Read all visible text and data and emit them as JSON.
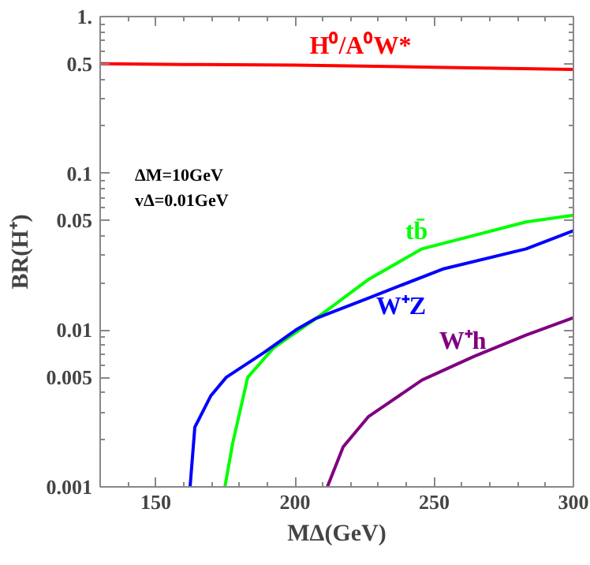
{
  "chart_data": {
    "type": "line",
    "xlabel": "MΔ(GeV)",
    "ylabel": "BR(H⁺)",
    "log": "y",
    "xlim": [
      130,
      300
    ],
    "xticks": [
      150,
      200,
      250,
      300
    ],
    "ylim": [
      0.001,
      1
    ],
    "yticks": [
      {
        "value": 0.001,
        "label": "0.001"
      },
      {
        "value": 0.005,
        "label": "0.005"
      },
      {
        "value": 0.01,
        "label": "0.01"
      },
      {
        "value": 0.05,
        "label": "0.05"
      },
      {
        "value": 0.1,
        "label": "0.1"
      },
      {
        "value": 0.5,
        "label": "0.5"
      },
      {
        "value": 1,
        "label": "1."
      }
    ],
    "grid": false,
    "line_style": "solid",
    "marker": "none",
    "series": [
      {
        "name": "H⁰/A⁰W*",
        "color": "#ff0000",
        "x": [
          130,
          160,
          200,
          250,
          300
        ],
        "values": [
          0.5,
          0.495,
          0.49,
          0.475,
          0.46
        ]
      },
      {
        "name": "tb̄",
        "color": "#00ff00",
        "x": [
          174.8,
          177.6,
          183,
          192.3,
          207.6,
          226.3,
          245.6,
          283,
          300
        ],
        "values": [
          0.001,
          0.0019,
          0.005,
          0.0077,
          0.0119,
          0.021,
          0.033,
          0.049,
          0.054
        ]
      },
      {
        "name": "W⁺Z",
        "color": "#0000ff",
        "x": [
          162.3,
          164,
          169.7,
          175.3,
          188.9,
          200.2,
          207.6,
          226.3,
          253,
          283,
          300
        ],
        "values": [
          0.001,
          0.0024,
          0.0038,
          0.005,
          0.0072,
          0.01,
          0.0119,
          0.016,
          0.0245,
          0.033,
          0.043
        ]
      },
      {
        "name": "W⁺h",
        "color": "#800080",
        "x": [
          211.6,
          217.3,
          226.3,
          245.6,
          264.3,
          283,
          300
        ],
        "values": [
          0.001,
          0.0018,
          0.0028,
          0.0048,
          0.0068,
          0.0093,
          0.012
        ]
      }
    ],
    "annotations": [
      "ΔM=10GeV",
      "vΔ=0.01GeV"
    ]
  }
}
